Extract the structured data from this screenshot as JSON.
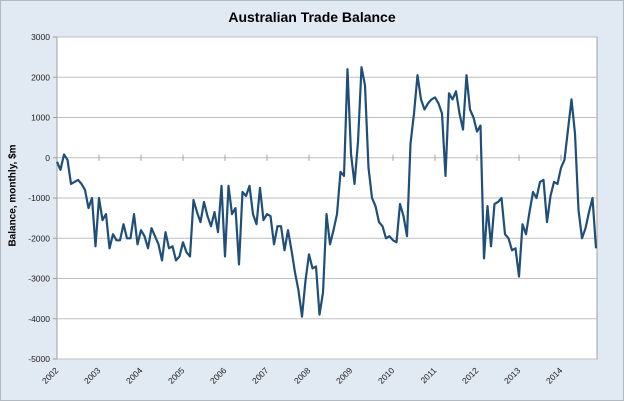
{
  "chart_data": {
    "type": "line",
    "title": "Australian Trade Balance",
    "xlabel": "",
    "ylabel": "Balance, monthly, $m",
    "ylim": [
      -5000,
      3000
    ],
    "yticks": [
      3000,
      2000,
      1000,
      0,
      -1000,
      -2000,
      -3000,
      -4000,
      -5000
    ],
    "xticks": [
      "2002",
      "2003",
      "2004",
      "2005",
      "2006",
      "2007",
      "2008",
      "2009",
      "2010",
      "2011",
      "2012",
      "2013",
      "2014"
    ],
    "grid": "horizontal",
    "legend": "none",
    "series": [
      {
        "name": "Balance",
        "color": "#1f4e79",
        "start": "2002-01",
        "frequency": "monthly",
        "values": [
          -100,
          -300,
          80,
          -50,
          -650,
          -600,
          -550,
          -650,
          -800,
          -1250,
          -1000,
          -2200,
          -1000,
          -1550,
          -1400,
          -2250,
          -1900,
          -2050,
          -2050,
          -1650,
          -2000,
          -2000,
          -1400,
          -2150,
          -1800,
          -1950,
          -2250,
          -1750,
          -1950,
          -2150,
          -2550,
          -1850,
          -2250,
          -2200,
          -2550,
          -2450,
          -2100,
          -2350,
          -2450,
          -1050,
          -1350,
          -1600,
          -1100,
          -1450,
          -1700,
          -1350,
          -1850,
          -700,
          -2450,
          -700,
          -1400,
          -1250,
          -2650,
          -850,
          -950,
          -700,
          -1400,
          -1650,
          -750,
          -1550,
          -1400,
          -1450,
          -2150,
          -1700,
          -1700,
          -2300,
          -1800,
          -2300,
          -2850,
          -3300,
          -3950,
          -3050,
          -2400,
          -2750,
          -2700,
          -3900,
          -3350,
          -1400,
          -2150,
          -1800,
          -1400,
          -350,
          -450,
          2200,
          100,
          -650,
          400,
          2250,
          1800,
          -250,
          -1000,
          -1200,
          -1600,
          -1700,
          -2000,
          -1950,
          -2050,
          -2100,
          -1150,
          -1450,
          -1950,
          350,
          1100,
          2050,
          1450,
          1200,
          1350,
          1450,
          1500,
          1350,
          1100,
          -450,
          1600,
          1450,
          1650,
          1100,
          700,
          2050,
          1200,
          1000,
          650,
          800,
          -2500,
          -1200,
          -2200,
          -1150,
          -1100,
          -1000,
          -1900,
          -2000,
          -2300,
          -2250,
          -2950,
          -1650,
          -1900,
          -1350,
          -850,
          -1000,
          -600,
          -550,
          -1600,
          -950,
          -600,
          -650,
          -250,
          -50,
          700,
          1450,
          600,
          -1300,
          -2000,
          -1750,
          -1350,
          -1000,
          -2250
        ]
      }
    ]
  }
}
